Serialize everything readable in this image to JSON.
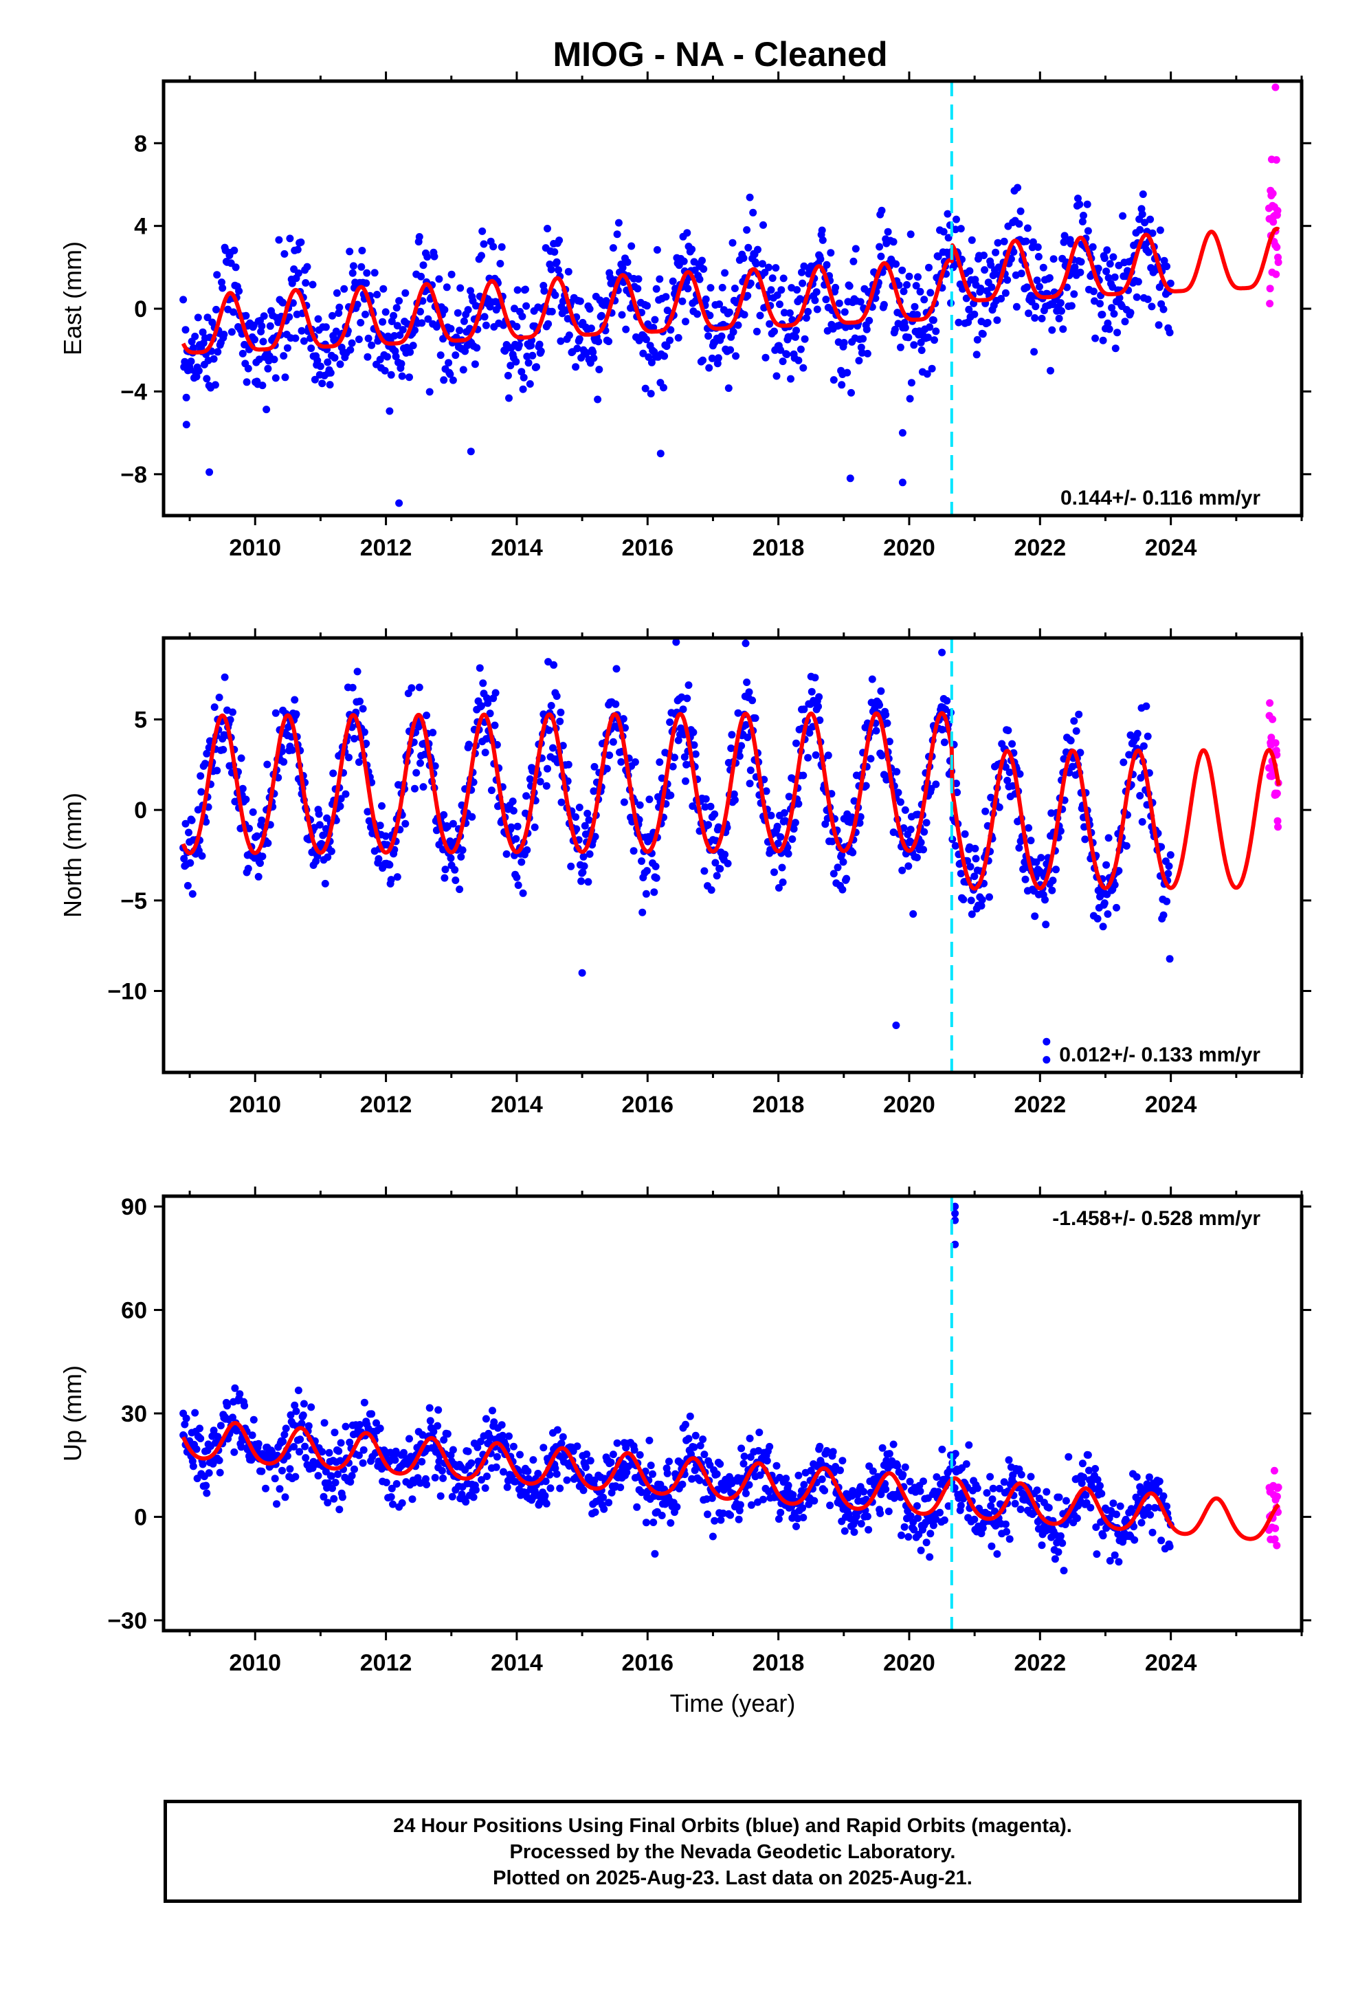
{
  "title": "MIOG  - NA - Cleaned",
  "colors": {
    "final_orbits": "#0000ff",
    "rapid_orbits": "#ff00ff",
    "model": "#ff0000",
    "event_line": "#00e5ff"
  },
  "footer": {
    "line1": "24 Hour Positions Using Final Orbits (blue) and Rapid Orbits (magenta).",
    "line2": "Processed by the Nevada Geodetic Laboratory.",
    "line3": "Plotted on 2025-Aug-23. Last data on 2025-Aug-21."
  },
  "chart_data": [
    {
      "type": "scatter",
      "ylabel": "East (mm)",
      "xlabel": "",
      "xlim": [
        2008.6,
        2026.0
      ],
      "ylim": [
        -10,
        11
      ],
      "xticks": [
        2010,
        2012,
        2014,
        2016,
        2018,
        2020,
        2022,
        2024
      ],
      "yticks": [
        8,
        4,
        0,
        -4,
        -8
      ],
      "rate_label": "0.144+/- 0.116 mm/yr",
      "event_line_x": 2020.65,
      "model": {
        "offset": 0.0,
        "trend": 0.144,
        "annual_amp": 1.4,
        "semiannual_amp": 0.35,
        "phase_year": 0.62,
        "step_at_event": 0.8
      },
      "final_orbits_range": [
        2008.9,
        2024.0
      ],
      "rapid_orbits_range": [
        2025.5,
        2025.65
      ],
      "scatter_sigma": 1.3,
      "outliers": [
        {
          "x": 2008.95,
          "y": -5.6
        },
        {
          "x": 2009.3,
          "y": -7.9
        },
        {
          "x": 2012.2,
          "y": -9.4
        },
        {
          "x": 2013.3,
          "y": -6.9
        },
        {
          "x": 2016.2,
          "y": -7.0
        },
        {
          "x": 2019.1,
          "y": -8.2
        },
        {
          "x": 2019.9,
          "y": -8.4
        },
        {
          "x": 2019.9,
          "y": -6.0
        },
        {
          "x": 2025.6,
          "y": 10.7
        }
      ]
    },
    {
      "type": "scatter",
      "ylabel": "North (mm)",
      "xlabel": "",
      "xlim": [
        2008.6,
        2026.0
      ],
      "ylim": [
        -14.5,
        9.5
      ],
      "xticks": [
        2010,
        2012,
        2014,
        2016,
        2018,
        2020,
        2022,
        2024
      ],
      "yticks": [
        5,
        0,
        -5,
        -10
      ],
      "rate_label": "0.012+/- 0.133 mm/yr",
      "event_line_x": 2020.65,
      "model": {
        "offset": 1.2,
        "trend": 0.012,
        "annual_amp": 3.8,
        "semiannual_amp": 0.3,
        "phase_year": 0.5,
        "step_at_event": -2.1
      },
      "final_orbits_range": [
        2008.9,
        2024.0
      ],
      "rapid_orbits_range": [
        2025.5,
        2025.65
      ],
      "scatter_sigma": 1.3,
      "outliers": [
        {
          "x": 2015.0,
          "y": -9.0
        },
        {
          "x": 2019.8,
          "y": -11.9
        },
        {
          "x": 2022.1,
          "y": -12.8
        },
        {
          "x": 2022.1,
          "y": -13.8
        },
        {
          "x": 2017.5,
          "y": 9.2
        },
        {
          "x": 2020.5,
          "y": 8.7
        }
      ]
    },
    {
      "type": "scatter",
      "ylabel": "Up (mm)",
      "xlabel": "Time (year)",
      "xlim": [
        2008.6,
        2026.0
      ],
      "ylim": [
        -33,
        93
      ],
      "xticks": [
        2010,
        2012,
        2014,
        2016,
        2018,
        2020,
        2022,
        2024
      ],
      "yticks": [
        90,
        60,
        30,
        0,
        -30
      ],
      "rate_label": "-1.458+/- 0.528 mm/yr",
      "event_line_x": 2020.65,
      "model": {
        "offset": 11.0,
        "trend": -1.458,
        "annual_amp": 5.5,
        "semiannual_amp": 0.8,
        "phase_year": 0.7,
        "step_at_event": 0.0
      },
      "final_orbits_range": [
        2008.9,
        2024.0
      ],
      "rapid_orbits_range": [
        2025.5,
        2025.65
      ],
      "scatter_sigma": 5.0,
      "outliers": [
        {
          "x": 2020.7,
          "y": 90.0
        },
        {
          "x": 2020.7,
          "y": 88.0
        },
        {
          "x": 2020.7,
          "y": 86.0
        },
        {
          "x": 2020.7,
          "y": 79.0
        },
        {
          "x": 2012.8,
          "y": 31.0
        },
        {
          "x": 2008.9,
          "y": 30.0
        }
      ]
    }
  ]
}
